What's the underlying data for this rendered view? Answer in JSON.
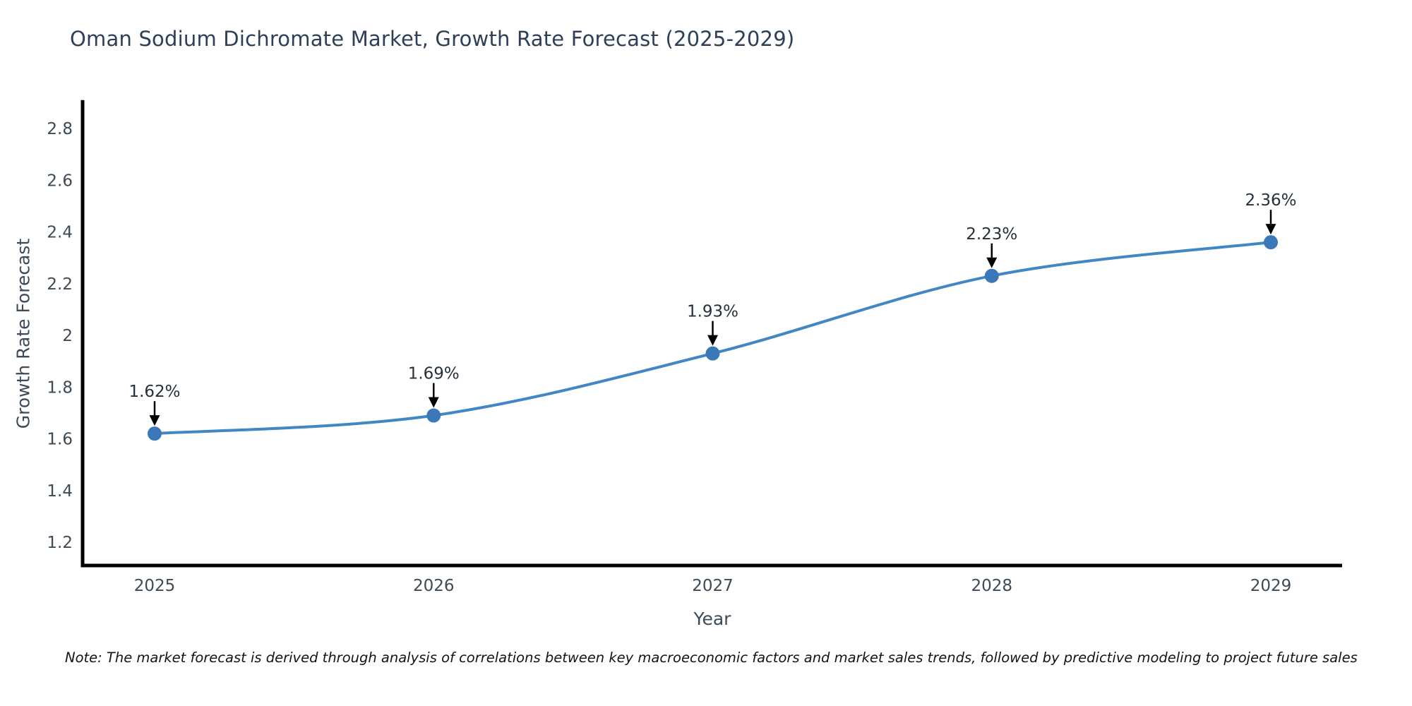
{
  "chart_data": {
    "type": "line",
    "title": "Oman Sodium Dichromate Market, Growth Rate Forecast (2025-2029)",
    "xlabel": "Year",
    "ylabel": "Growth Rate Forecast",
    "x": [
      2025,
      2026,
      2027,
      2028,
      2029
    ],
    "y": [
      1.62,
      1.69,
      1.93,
      2.23,
      2.36
    ],
    "series": [
      {
        "name": "Growth Rate Forecast",
        "values": [
          1.62,
          1.69,
          1.93,
          2.23,
          2.36
        ]
      }
    ],
    "point_labels": [
      "1.62%",
      "1.69%",
      "1.93%",
      "2.23%",
      "2.36%"
    ],
    "x_tick_labels": [
      "2025",
      "2026",
      "2027",
      "2028",
      "2029"
    ],
    "y_ticks": [
      1.2,
      1.4,
      1.6,
      1.8,
      2,
      2.2,
      2.4,
      2.6,
      2.8
    ],
    "y_tick_labels": [
      "1.2",
      "1.4",
      "1.6",
      "1.8",
      "2",
      "2.2",
      "2.4",
      "2.6",
      "2.8"
    ],
    "ylim": [
      1.11,
      2.91
    ],
    "grid": false,
    "legend": null,
    "smooth": true,
    "line_color": "#4287c5",
    "marker_color": "#3a78b8",
    "axis_color": "#000000",
    "annotation_arrow_color": "#000000"
  },
  "note": {
    "text": "Note: The market forecast is derived through analysis of correlations between key macroeconomic factors and market sales trends, followed by predictive modeling to project future sales"
  }
}
